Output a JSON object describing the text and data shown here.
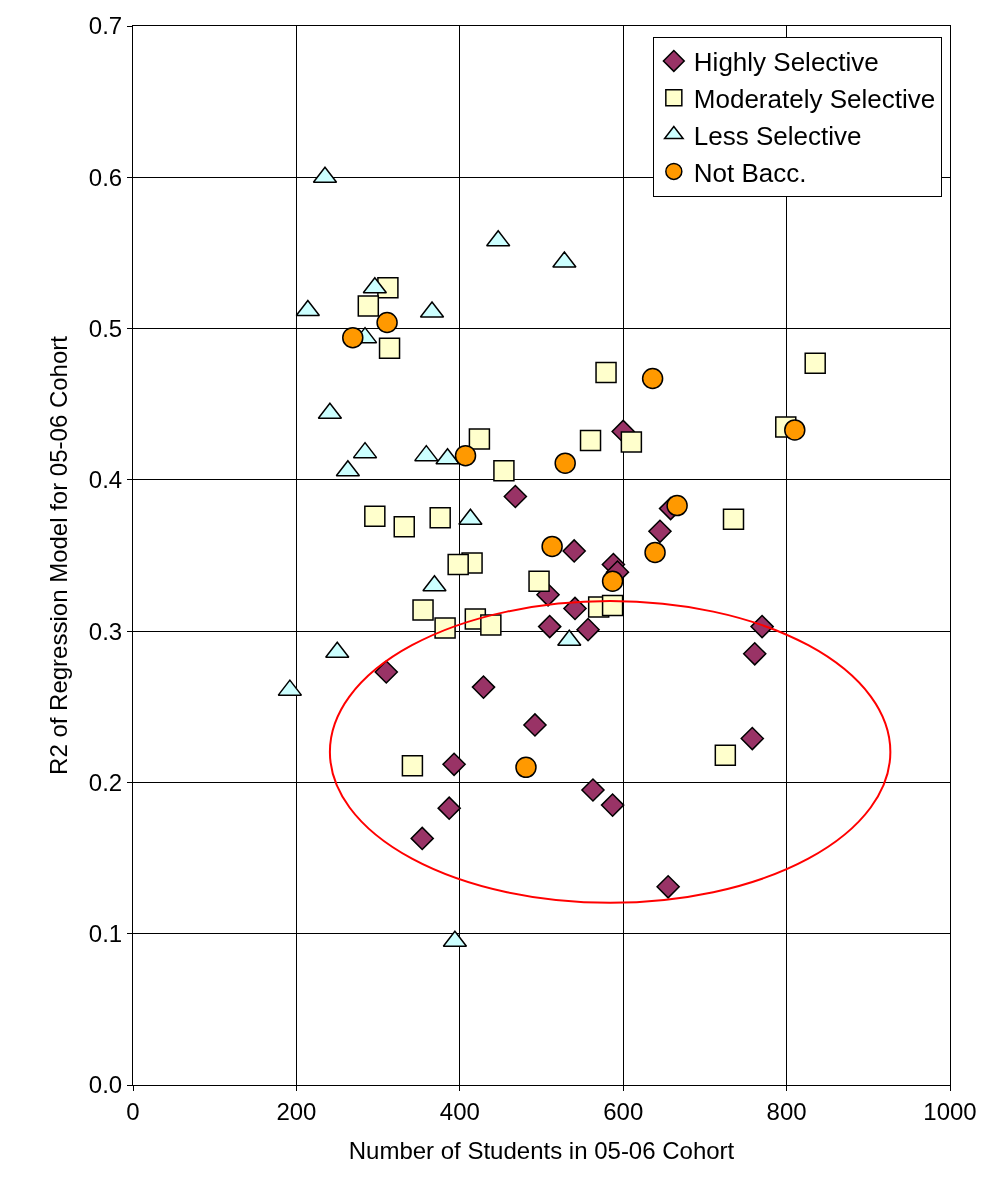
{
  "chart_data": {
    "type": "scatter",
    "xlabel": "Number of Students in 05-06 Cohort",
    "ylabel": "R2 of Regression Model for 05-06 Cohort",
    "xlim": [
      0,
      1000
    ],
    "xticks": [
      0,
      200,
      400,
      600,
      800,
      1000
    ],
    "ylim": [
      0,
      0.7
    ],
    "yticks": [
      {
        "value": 0,
        "label": "0.0"
      },
      0.1,
      0.2,
      0.3,
      0.4,
      0.5,
      0.6,
      0.7
    ],
    "grid": true,
    "legend": "top right",
    "series": [
      {
        "name": "Highly Selective",
        "color": "#993366",
        "marker": "diamond",
        "x": [
          310,
          429,
          492,
          393,
          387,
          354,
          563,
          587,
          655,
          758,
          761,
          770,
          468,
          600,
          658,
          645,
          540,
          588,
          593,
          508,
          541,
          510,
          557
        ],
        "values": [
          0.273,
          0.263,
          0.238,
          0.212,
          0.183,
          0.163,
          0.195,
          0.185,
          0.131,
          0.229,
          0.285,
          0.303,
          0.389,
          0.432,
          0.381,
          0.366,
          0.353,
          0.344,
          0.339,
          0.324,
          0.315,
          0.303,
          0.301
        ]
      },
      {
        "name": "Moderately Selective",
        "color": "#ffffcc",
        "marker": "square",
        "x": [
          342,
          725,
          579,
          835,
          799,
          610,
          560,
          424,
          454,
          735,
          376,
          415,
          398,
          497,
          570,
          587,
          355,
          419,
          438,
          382,
          312,
          288,
          314,
          296,
          332
        ],
        "values": [
          0.211,
          0.218,
          0.471,
          0.477,
          0.435,
          0.425,
          0.426,
          0.427,
          0.406,
          0.374,
          0.375,
          0.345,
          0.344,
          0.333,
          0.316,
          0.317,
          0.314,
          0.308,
          0.304,
          0.302,
          0.527,
          0.515,
          0.487,
          0.376,
          0.369
        ]
      },
      {
        "name": "Less Selective",
        "color": "#ccffff",
        "marker": "triangle",
        "x": [
          192,
          250,
          534,
          394,
          447,
          528,
          366,
          359,
          385,
          413,
          369,
          235,
          296,
          214,
          284,
          241,
          284,
          263
        ],
        "values": [
          0.261,
          0.286,
          0.294,
          0.095,
          0.558,
          0.544,
          0.511,
          0.416,
          0.414,
          0.374,
          0.33,
          0.6,
          0.527,
          0.512,
          0.494,
          0.444,
          0.418,
          0.406
        ]
      },
      {
        "name": "Not Bacc.",
        "color": "#ff9900",
        "marker": "circle",
        "x": [
          481,
          636,
          810,
          529,
          407,
          666,
          639,
          513,
          587,
          311,
          269
        ],
        "values": [
          0.21,
          0.467,
          0.433,
          0.411,
          0.416,
          0.383,
          0.352,
          0.356,
          0.333,
          0.504,
          0.494
        ]
      }
    ]
  }
}
